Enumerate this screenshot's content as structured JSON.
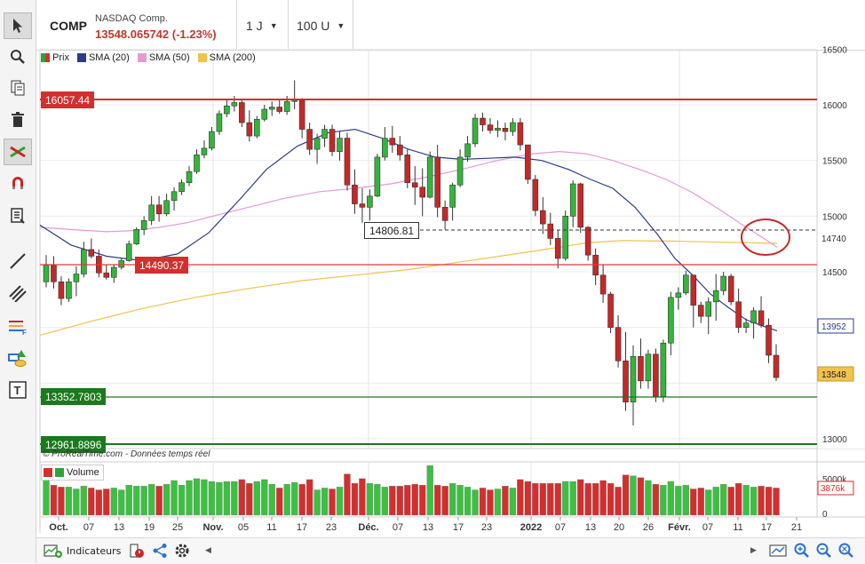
{
  "header": {
    "symbol": "COMP",
    "name": "NASDAQ Comp.",
    "price": "13548.065742 (-1.23%)",
    "timeframe": "1 J",
    "units": "100 U"
  },
  "legend": [
    {
      "label": "Prix",
      "color": "#2fa336"
    },
    {
      "label": "SMA (20)",
      "color": "#2d3b8f"
    },
    {
      "label": "SMA (50)",
      "color": "#e59ad6"
    },
    {
      "label": "SMA (200)",
      "color": "#f2c14e"
    }
  ],
  "levels": {
    "r1": "16057.44",
    "r2": "14490.37",
    "s1": "13352.7803",
    "s2": "12961.8896",
    "sma_cross": "14806.81",
    "sma_axis": "14740",
    "sma20_axis": "13952",
    "last": "13548"
  },
  "price_axis": [
    "16500",
    "16000",
    "15500",
    "15000",
    "14500",
    "13000"
  ],
  "volume_axis": [
    "5000k",
    "0"
  ],
  "volume_last": "3876k",
  "volume_label": "Volume",
  "copyright": "© ProRealTime.com - Données temps réel",
  "bottom": {
    "indicators": "Indicateurs"
  },
  "chart_data": {
    "type": "candlestick",
    "xlabels": [
      "Oct.",
      "07",
      "13",
      "19",
      "25",
      "Nov.",
      "05",
      "11",
      "17",
      "23",
      "Déc.",
      "07",
      "13",
      "17",
      "23",
      "2022",
      "07",
      "13",
      "20",
      "26",
      "Févr.",
      "07",
      "11",
      "17",
      "21"
    ],
    "ylim": [
      12900,
      16550
    ],
    "candles": [
      [
        14410,
        14650,
        14360,
        14560
      ],
      [
        14560,
        14640,
        14350,
        14410
      ],
      [
        14410,
        14460,
        14200,
        14260
      ],
      [
        14260,
        14440,
        14230,
        14410
      ],
      [
        14410,
        14550,
        14280,
        14480
      ],
      [
        14480,
        14770,
        14450,
        14700
      ],
      [
        14700,
        14800,
        14620,
        14640
      ],
      [
        14640,
        14700,
        14450,
        14490
      ],
      [
        14490,
        14560,
        14430,
        14450
      ],
      [
        14450,
        14560,
        14400,
        14540
      ],
      [
        14540,
        14620,
        14520,
        14600
      ],
      [
        14600,
        14780,
        14590,
        14750
      ],
      [
        14750,
        14900,
        14740,
        14880
      ],
      [
        14880,
        15000,
        14830,
        14960
      ],
      [
        14960,
        15180,
        14920,
        15100
      ],
      [
        15100,
        15180,
        14950,
        15020
      ],
      [
        15020,
        15200,
        15000,
        15140
      ],
      [
        15140,
        15260,
        15050,
        15220
      ],
      [
        15220,
        15330,
        15190,
        15300
      ],
      [
        15300,
        15450,
        15270,
        15400
      ],
      [
        15400,
        15600,
        15380,
        15550
      ],
      [
        15550,
        15680,
        15520,
        15610
      ],
      [
        15610,
        15800,
        15590,
        15760
      ],
      [
        15760,
        15950,
        15730,
        15920
      ],
      [
        15920,
        16050,
        15890,
        15990
      ],
      [
        15990,
        16080,
        15940,
        16020
      ],
      [
        16020,
        16040,
        15800,
        15840
      ],
      [
        15840,
        15950,
        15670,
        15720
      ],
      [
        15720,
        15900,
        15700,
        15870
      ],
      [
        15870,
        16000,
        15850,
        15960
      ],
      [
        15960,
        16030,
        15900,
        15980
      ],
      [
        15980,
        16040,
        15920,
        15940
      ],
      [
        15940,
        16080,
        15910,
        16030
      ],
      [
        16030,
        16220,
        15960,
        16040
      ],
      [
        16040,
        16060,
        15700,
        15780
      ],
      [
        15780,
        15840,
        15550,
        15600
      ],
      [
        15600,
        15740,
        15470,
        15700
      ],
      [
        15700,
        15820,
        15620,
        15780
      ],
      [
        15780,
        15820,
        15540,
        15580
      ],
      [
        15580,
        15760,
        15500,
        15700
      ],
      [
        15700,
        15750,
        15230,
        15280
      ],
      [
        15280,
        15420,
        15020,
        15110
      ],
      [
        15110,
        15250,
        14940,
        15080
      ],
      [
        15080,
        15240,
        14960,
        15180
      ],
      [
        15180,
        15560,
        15170,
        15530
      ],
      [
        15530,
        15800,
        15500,
        15700
      ],
      [
        15700,
        15810,
        15570,
        15640
      ],
      [
        15640,
        15720,
        15500,
        15550
      ],
      [
        15550,
        15600,
        15250,
        15300
      ],
      [
        15300,
        15450,
        15100,
        15260
      ],
      [
        15260,
        15430,
        15000,
        15170
      ],
      [
        15170,
        15580,
        15160,
        15530
      ],
      [
        15530,
        15640,
        14990,
        15080
      ],
      [
        15080,
        15140,
        14880,
        14960
      ],
      [
        15080,
        15300,
        14960,
        15280
      ],
      [
        15280,
        15600,
        15260,
        15530
      ],
      [
        15530,
        15720,
        15490,
        15650
      ],
      [
        15650,
        15920,
        15620,
        15880
      ],
      [
        15880,
        15930,
        15760,
        15820
      ],
      [
        15820,
        15880,
        15740,
        15770
      ],
      [
        15770,
        15860,
        15710,
        15790
      ],
      [
        15790,
        15840,
        15680,
        15760
      ],
      [
        15760,
        15880,
        15720,
        15840
      ],
      [
        15840,
        15880,
        15590,
        15640
      ],
      [
        15640,
        15620,
        15290,
        15330
      ],
      [
        15330,
        15370,
        15000,
        15050
      ],
      [
        15050,
        15170,
        14840,
        14930
      ],
      [
        14930,
        15030,
        14740,
        14800
      ],
      [
        14800,
        14870,
        14530,
        14620
      ],
      [
        14620,
        15050,
        14600,
        15000
      ],
      [
        15000,
        15320,
        14900,
        15290
      ],
      [
        15290,
        15300,
        14850,
        14900
      ],
      [
        14900,
        14910,
        14600,
        14650
      ],
      [
        14650,
        14710,
        14380,
        14470
      ],
      [
        14470,
        14560,
        14220,
        14300
      ],
      [
        14300,
        14320,
        13950,
        14000
      ],
      [
        14000,
        14110,
        13640,
        13700
      ],
      [
        13700,
        13960,
        13250,
        13330
      ],
      [
        13330,
        13840,
        13120,
        13740
      ],
      [
        13740,
        13900,
        13450,
        13520
      ],
      [
        13520,
        13800,
        13450,
        13760
      ],
      [
        13760,
        13810,
        13330,
        13380
      ],
      [
        13380,
        13890,
        13330,
        13860
      ],
      [
        13860,
        14320,
        13750,
        14270
      ],
      [
        14270,
        14360,
        14160,
        14310
      ],
      [
        14310,
        14510,
        14290,
        14470
      ],
      [
        14470,
        14470,
        14000,
        14200
      ],
      [
        14200,
        14230,
        14040,
        14100
      ],
      [
        14100,
        14270,
        13940,
        14230
      ],
      [
        14230,
        14480,
        14060,
        14330
      ],
      [
        14330,
        14500,
        14290,
        14460
      ],
      [
        14460,
        14480,
        14200,
        14230
      ],
      [
        14230,
        14350,
        13950,
        14000
      ],
      [
        14000,
        14080,
        13950,
        14040
      ],
      [
        14040,
        14180,
        13900,
        14150
      ],
      [
        14150,
        14280,
        14000,
        14020
      ],
      [
        14020,
        14080,
        13680,
        13750
      ],
      [
        13750,
        13850,
        13520,
        13550
      ]
    ],
    "sma20": [
      [
        45,
        14920
      ],
      [
        80,
        14740
      ],
      [
        120,
        14640
      ],
      [
        160,
        14600
      ],
      [
        200,
        14660
      ],
      [
        235,
        14850
      ],
      [
        270,
        15150
      ],
      [
        300,
        15420
      ],
      [
        335,
        15630
      ],
      [
        370,
        15750
      ],
      [
        400,
        15780
      ],
      [
        430,
        15700
      ],
      [
        460,
        15600
      ],
      [
        490,
        15530
      ],
      [
        520,
        15510
      ],
      [
        550,
        15520
      ],
      [
        580,
        15530
      ],
      [
        610,
        15500
      ],
      [
        640,
        15420
      ],
      [
        665,
        15330
      ],
      [
        690,
        15250
      ],
      [
        715,
        15080
      ],
      [
        740,
        14840
      ],
      [
        760,
        14620
      ],
      [
        780,
        14470
      ],
      [
        800,
        14300
      ],
      [
        820,
        14180
      ],
      [
        840,
        14070
      ],
      [
        860,
        14010
      ],
      [
        875,
        13970
      ]
    ],
    "sma50": [
      [
        45,
        14900
      ],
      [
        80,
        14880
      ],
      [
        120,
        14860
      ],
      [
        150,
        14870
      ],
      [
        180,
        14900
      ],
      [
        210,
        14940
      ],
      [
        240,
        15000
      ],
      [
        280,
        15080
      ],
      [
        320,
        15160
      ],
      [
        360,
        15220
      ],
      [
        400,
        15250
      ],
      [
        440,
        15290
      ],
      [
        480,
        15350
      ],
      [
        520,
        15420
      ],
      [
        560,
        15500
      ],
      [
        600,
        15560
      ],
      [
        630,
        15580
      ],
      [
        660,
        15560
      ],
      [
        690,
        15500
      ],
      [
        720,
        15420
      ],
      [
        750,
        15330
      ],
      [
        780,
        15210
      ],
      [
        810,
        15060
      ],
      [
        840,
        14900
      ],
      [
        860,
        14800
      ],
      [
        875,
        14720
      ]
    ],
    "sma200": [
      [
        45,
        13930
      ],
      [
        100,
        14050
      ],
      [
        160,
        14170
      ],
      [
        220,
        14270
      ],
      [
        280,
        14350
      ],
      [
        340,
        14420
      ],
      [
        400,
        14470
      ],
      [
        460,
        14520
      ],
      [
        520,
        14590
      ],
      [
        580,
        14660
      ],
      [
        630,
        14720
      ],
      [
        660,
        14760
      ],
      [
        700,
        14780
      ],
      [
        760,
        14775
      ],
      [
        820,
        14765
      ],
      [
        875,
        14755
      ]
    ],
    "volumes": [
      44,
      32,
      30,
      30,
      28,
      31,
      29,
      27,
      28,
      29,
      27,
      32,
      31,
      31,
      33,
      31,
      33,
      37,
      32,
      37,
      39,
      38,
      36,
      35,
      36,
      36,
      38,
      34,
      36,
      38,
      33,
      29,
      33,
      35,
      33,
      38,
      27,
      29,
      28,
      30,
      44,
      34,
      39,
      34,
      33,
      30,
      31,
      31,
      32,
      33,
      32,
      53,
      32,
      31,
      34,
      32,
      30,
      27,
      29,
      27,
      28,
      31,
      29,
      38,
      36,
      34,
      34,
      34,
      34,
      36,
      36,
      38,
      34,
      34,
      37,
      34,
      30,
      43,
      42,
      40,
      37,
      33,
      32,
      36,
      31,
      32,
      28,
      29,
      27,
      30,
      33,
      30,
      34,
      32,
      30,
      31,
      30,
      29
    ]
  }
}
